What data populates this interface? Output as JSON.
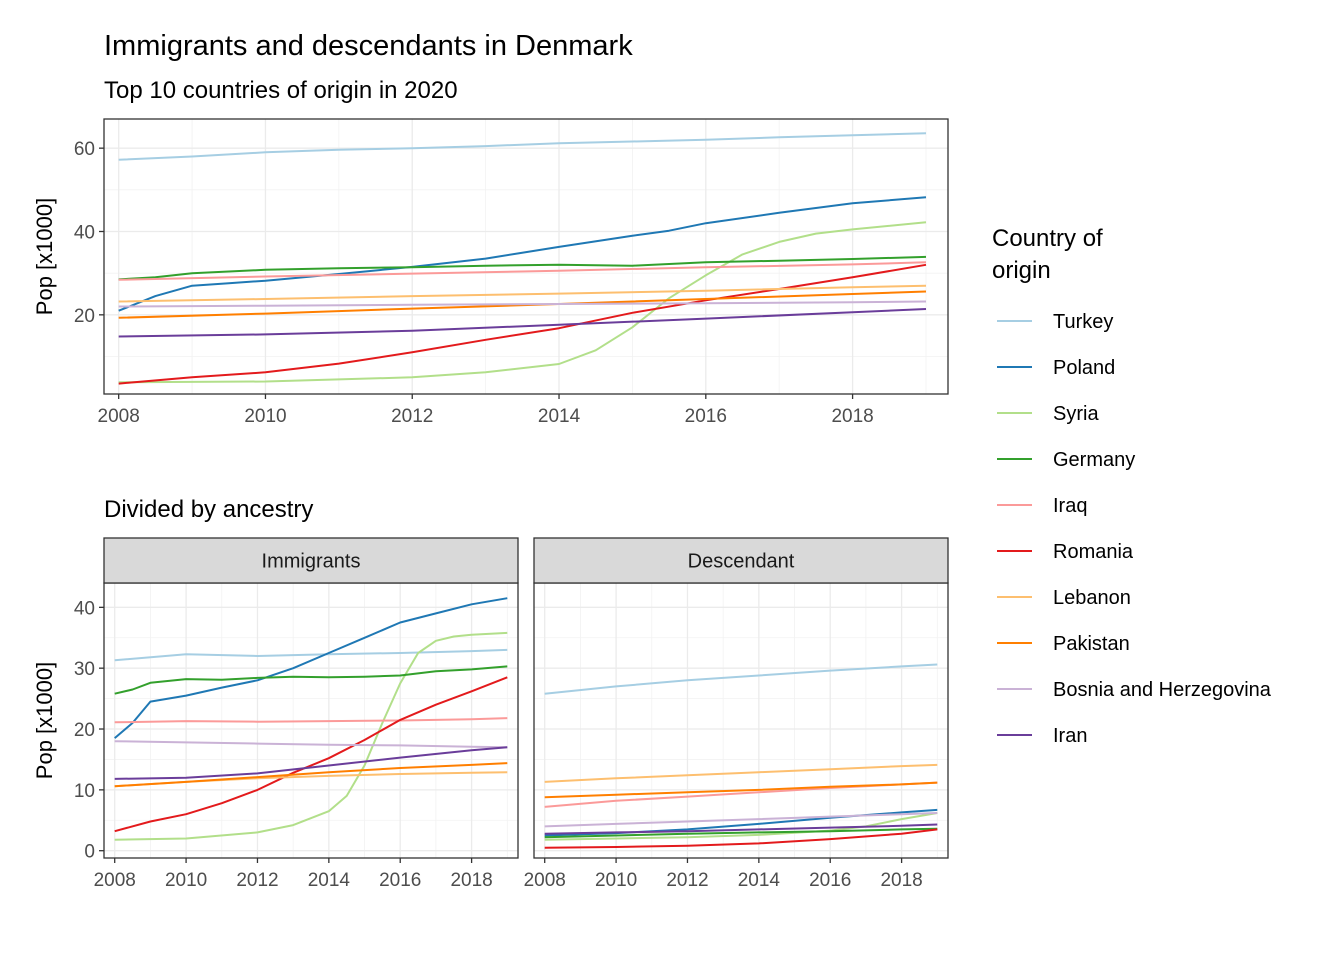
{
  "title": "Immigrants and descendants in Denmark",
  "chart_data": [
    {
      "type": "line",
      "subtitle": "Top 10 countries of origin in 2020",
      "ylabel": "Pop [x1000]",
      "xlabel": "",
      "xlim": [
        2007.8,
        2019.3
      ],
      "ylim": [
        1,
        67
      ],
      "xticks": [
        2008,
        2010,
        2012,
        2014,
        2016,
        2018
      ],
      "yticks": [
        20,
        40,
        60
      ],
      "grid": true,
      "series": [
        {
          "name": "Turkey",
          "color": "#A6CEE3",
          "x": [
            2008,
            2009,
            2010,
            2011,
            2012,
            2013,
            2014,
            2015,
            2016,
            2017,
            2018,
            2019
          ],
          "y": [
            57.2,
            58.0,
            59.0,
            59.6,
            60.0,
            60.5,
            61.2,
            61.6,
            62.0,
            62.6,
            63.1,
            63.6
          ]
        },
        {
          "name": "Poland",
          "color": "#1F78B4",
          "x": [
            2008,
            2008.5,
            2009,
            2009.5,
            2010,
            2011,
            2012,
            2013,
            2014,
            2015,
            2015.5,
            2016,
            2017,
            2018,
            2019
          ],
          "y": [
            21.0,
            24.5,
            27.0,
            27.6,
            28.2,
            29.8,
            31.5,
            33.5,
            36.3,
            39.0,
            40.2,
            42.0,
            44.5,
            46.8,
            48.2
          ]
        },
        {
          "name": "Syria",
          "color": "#B2DF8A",
          "x": [
            2008,
            2010,
            2012,
            2013,
            2014,
            2014.5,
            2015,
            2015.5,
            2016,
            2016.5,
            2017,
            2017.5,
            2018,
            2019
          ],
          "y": [
            3.8,
            4.0,
            5.0,
            6.2,
            8.2,
            11.5,
            17.0,
            24.0,
            29.5,
            34.5,
            37.5,
            39.5,
            40.5,
            42.2
          ]
        },
        {
          "name": "Germany",
          "color": "#33A02C",
          "x": [
            2008,
            2008.5,
            2009,
            2010,
            2011,
            2012,
            2013,
            2014,
            2015,
            2016,
            2017,
            2018,
            2019
          ],
          "y": [
            28.5,
            29.0,
            30.0,
            30.8,
            31.2,
            31.4,
            31.8,
            32.0,
            31.8,
            32.6,
            33.0,
            33.4,
            33.9
          ]
        },
        {
          "name": "Iraq",
          "color": "#FB9A99",
          "x": [
            2008,
            2010,
            2012,
            2014,
            2016,
            2018,
            2019
          ],
          "y": [
            28.4,
            29.2,
            29.9,
            30.6,
            31.4,
            32.1,
            32.6
          ]
        },
        {
          "name": "Romania",
          "color": "#E31A1C",
          "x": [
            2008,
            2009,
            2010,
            2011,
            2012,
            2013,
            2014,
            2015,
            2016,
            2017,
            2018,
            2019
          ],
          "y": [
            3.5,
            5.0,
            6.2,
            8.3,
            11.0,
            14.0,
            16.8,
            20.5,
            23.5,
            26.2,
            29.0,
            32.0
          ]
        },
        {
          "name": "Lebanon",
          "color": "#FDBF6F",
          "x": [
            2008,
            2010,
            2012,
            2014,
            2016,
            2018,
            2019
          ],
          "y": [
            23.2,
            23.8,
            24.5,
            25.1,
            25.8,
            26.6,
            27.0
          ]
        },
        {
          "name": "Pakistan",
          "color": "#FF7F00",
          "x": [
            2008,
            2010,
            2012,
            2014,
            2016,
            2018,
            2019
          ],
          "y": [
            19.3,
            20.3,
            21.5,
            22.6,
            23.8,
            25.0,
            25.6
          ]
        },
        {
          "name": "Bosnia and Herzegovina",
          "color": "#CAB2D6",
          "x": [
            2008,
            2010,
            2012,
            2014,
            2016,
            2018,
            2019
          ],
          "y": [
            22.0,
            22.2,
            22.4,
            22.6,
            22.8,
            23.0,
            23.2
          ]
        },
        {
          "name": "Iran",
          "color": "#6A3D9A",
          "x": [
            2008,
            2010,
            2012,
            2014,
            2016,
            2018,
            2019
          ],
          "y": [
            14.8,
            15.3,
            16.2,
            17.6,
            19.1,
            20.6,
            21.4
          ]
        }
      ]
    },
    {
      "type": "line",
      "subtitle": "Divided by ancestry",
      "facet": "Immigrants",
      "ylabel": "Pop [x1000]",
      "xlabel": "",
      "xlim": [
        2007.7,
        2019.3
      ],
      "ylim": [
        -1.2,
        44
      ],
      "xticks": [
        2008,
        2010,
        2012,
        2014,
        2016,
        2018
      ],
      "yticks": [
        0,
        10,
        20,
        30,
        40
      ],
      "grid": true,
      "series": [
        {
          "name": "Turkey",
          "color": "#A6CEE3",
          "x": [
            2008,
            2010,
            2012,
            2014,
            2016,
            2018,
            2019
          ],
          "y": [
            31.3,
            32.3,
            32.0,
            32.3,
            32.5,
            32.8,
            33.0
          ]
        },
        {
          "name": "Poland",
          "color": "#1F78B4",
          "x": [
            2008,
            2008.5,
            2009,
            2010,
            2011,
            2012,
            2013,
            2014,
            2015,
            2016,
            2017,
            2018,
            2019
          ],
          "y": [
            18.5,
            21.0,
            24.5,
            25.5,
            26.8,
            28.0,
            30.0,
            32.5,
            35.0,
            37.5,
            39.0,
            40.5,
            41.5
          ]
        },
        {
          "name": "Syria",
          "color": "#B2DF8A",
          "x": [
            2008,
            2010,
            2012,
            2013,
            2014,
            2014.5,
            2015,
            2015.5,
            2016,
            2016.5,
            2017,
            2017.5,
            2018,
            2019
          ],
          "y": [
            1.8,
            2.0,
            3.0,
            4.2,
            6.5,
            9.0,
            14.0,
            21.0,
            27.5,
            32.5,
            34.5,
            35.2,
            35.5,
            35.8
          ]
        },
        {
          "name": "Germany",
          "color": "#33A02C",
          "x": [
            2008,
            2008.5,
            2009,
            2010,
            2011,
            2012,
            2013,
            2014,
            2015,
            2016,
            2017,
            2018,
            2019
          ],
          "y": [
            25.8,
            26.5,
            27.6,
            28.2,
            28.1,
            28.4,
            28.6,
            28.5,
            28.6,
            28.8,
            29.5,
            29.8,
            30.3
          ]
        },
        {
          "name": "Iraq",
          "color": "#FB9A99",
          "x": [
            2008,
            2010,
            2012,
            2014,
            2016,
            2018,
            2019
          ],
          "y": [
            21.1,
            21.3,
            21.2,
            21.3,
            21.4,
            21.6,
            21.8
          ]
        },
        {
          "name": "Romania",
          "color": "#E31A1C",
          "x": [
            2008,
            2009,
            2010,
            2011,
            2012,
            2013,
            2014,
            2015,
            2016,
            2017,
            2018,
            2019
          ],
          "y": [
            3.2,
            4.8,
            6.0,
            7.8,
            10.0,
            12.8,
            15.2,
            18.2,
            21.5,
            24.0,
            26.2,
            28.5
          ]
        },
        {
          "name": "Lebanon",
          "color": "#FDBF6F",
          "x": [
            2008,
            2010,
            2012,
            2014,
            2016,
            2018,
            2019
          ],
          "y": [
            10.6,
            11.3,
            11.9,
            12.3,
            12.6,
            12.8,
            12.9
          ]
        },
        {
          "name": "Pakistan",
          "color": "#FF7F00",
          "x": [
            2008,
            2010,
            2012,
            2014,
            2016,
            2018,
            2019
          ],
          "y": [
            10.6,
            11.3,
            12.1,
            12.9,
            13.6,
            14.1,
            14.4
          ]
        },
        {
          "name": "Bosnia and Herzegovina",
          "color": "#CAB2D6",
          "x": [
            2008,
            2010,
            2012,
            2014,
            2016,
            2018,
            2019
          ],
          "y": [
            18.0,
            17.8,
            17.6,
            17.4,
            17.3,
            17.1,
            17.0
          ]
        },
        {
          "name": "Iran",
          "color": "#6A3D9A",
          "x": [
            2008,
            2010,
            2012,
            2014,
            2016,
            2018,
            2019
          ],
          "y": [
            11.8,
            12.0,
            12.7,
            14.0,
            15.3,
            16.5,
            17.0
          ]
        }
      ]
    },
    {
      "type": "line",
      "facet": "Descendant",
      "xlabel": "",
      "xlim": [
        2007.7,
        2019.3
      ],
      "ylim": [
        -1.2,
        44
      ],
      "xticks": [
        2008,
        2010,
        2012,
        2014,
        2016,
        2018
      ],
      "grid": true,
      "series": [
        {
          "name": "Turkey",
          "color": "#A6CEE3",
          "x": [
            2008,
            2010,
            2012,
            2014,
            2016,
            2018,
            2019
          ],
          "y": [
            25.8,
            27.0,
            28.0,
            28.8,
            29.6,
            30.3,
            30.6
          ]
        },
        {
          "name": "Poland",
          "color": "#1F78B4",
          "x": [
            2008,
            2010,
            2012,
            2014,
            2016,
            2018,
            2019
          ],
          "y": [
            2.5,
            2.9,
            3.5,
            4.4,
            5.4,
            6.3,
            6.7
          ]
        },
        {
          "name": "Syria",
          "color": "#B2DF8A",
          "x": [
            2008,
            2010,
            2012,
            2014,
            2016,
            2017,
            2018,
            2019
          ],
          "y": [
            1.8,
            2.0,
            2.2,
            2.6,
            3.3,
            4.0,
            5.2,
            6.2
          ]
        },
        {
          "name": "Germany",
          "color": "#33A02C",
          "x": [
            2008,
            2010,
            2012,
            2014,
            2016,
            2018,
            2019
          ],
          "y": [
            2.2,
            2.5,
            2.8,
            3.0,
            3.2,
            3.5,
            3.6
          ]
        },
        {
          "name": "Iraq",
          "color": "#FB9A99",
          "x": [
            2008,
            2010,
            2012,
            2014,
            2016,
            2018,
            2019
          ],
          "y": [
            7.2,
            8.2,
            8.9,
            9.6,
            10.3,
            10.9,
            11.2
          ]
        },
        {
          "name": "Romania",
          "color": "#E31A1C",
          "x": [
            2008,
            2010,
            2012,
            2014,
            2016,
            2018,
            2019
          ],
          "y": [
            0.5,
            0.6,
            0.8,
            1.2,
            1.9,
            2.8,
            3.5
          ]
        },
        {
          "name": "Lebanon",
          "color": "#FDBF6F",
          "x": [
            2008,
            2010,
            2012,
            2014,
            2016,
            2018,
            2019
          ],
          "y": [
            11.3,
            11.9,
            12.4,
            12.9,
            13.4,
            13.9,
            14.1
          ]
        },
        {
          "name": "Pakistan",
          "color": "#FF7F00",
          "x": [
            2008,
            2010,
            2012,
            2014,
            2016,
            2018,
            2019
          ],
          "y": [
            8.8,
            9.2,
            9.6,
            10.0,
            10.5,
            10.9,
            11.2
          ]
        },
        {
          "name": "Bosnia and Herzegovina",
          "color": "#CAB2D6",
          "x": [
            2008,
            2010,
            2012,
            2014,
            2016,
            2018,
            2019
          ],
          "y": [
            4.0,
            4.4,
            4.8,
            5.2,
            5.6,
            6.0,
            6.2
          ]
        },
        {
          "name": "Iran",
          "color": "#6A3D9A",
          "x": [
            2008,
            2010,
            2012,
            2014,
            2016,
            2018,
            2019
          ],
          "y": [
            2.8,
            3.0,
            3.2,
            3.5,
            3.8,
            4.1,
            4.3
          ]
        }
      ]
    }
  ],
  "legend": {
    "title_line1": "Country of",
    "title_line2": "origin",
    "position": "right",
    "items": [
      {
        "label": "Turkey",
        "color": "#A6CEE3"
      },
      {
        "label": "Poland",
        "color": "#1F78B4"
      },
      {
        "label": "Syria",
        "color": "#B2DF8A"
      },
      {
        "label": "Germany",
        "color": "#33A02C"
      },
      {
        "label": "Iraq",
        "color": "#FB9A99"
      },
      {
        "label": "Romania",
        "color": "#E31A1C"
      },
      {
        "label": "Lebanon",
        "color": "#FDBF6F"
      },
      {
        "label": "Pakistan",
        "color": "#FF7F00"
      },
      {
        "label": "Bosnia and Herzegovina",
        "color": "#CAB2D6"
      },
      {
        "label": "Iran",
        "color": "#6A3D9A"
      }
    ]
  }
}
